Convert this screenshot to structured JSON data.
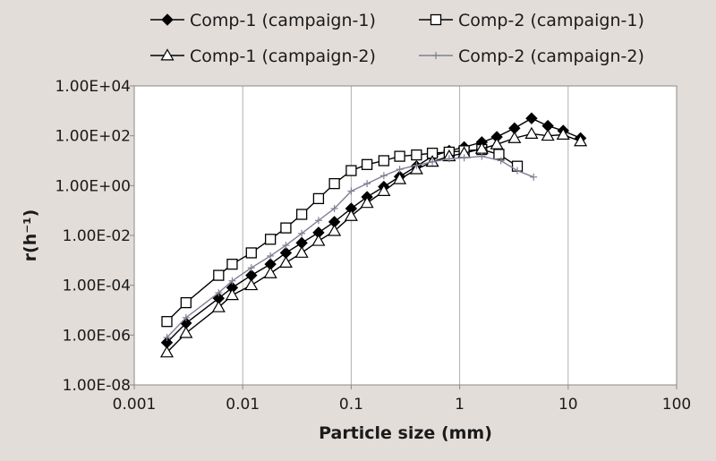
{
  "chart_data": {
    "type": "scatter",
    "title": "",
    "xlabel": "Particle size (mm)",
    "ylabel": "r(h⁻¹)",
    "x_scale": "log",
    "y_scale": "log",
    "xlim": [
      0.001,
      100
    ],
    "ylim": [
      1e-08,
      10000
    ],
    "x_ticks": [
      0.001,
      0.01,
      0.1,
      1,
      10,
      100
    ],
    "x_tick_labels": [
      "0.001",
      "0.01",
      "0.1",
      "1",
      "10",
      "100"
    ],
    "y_ticks": [
      1e-08,
      1e-06,
      0.0001,
      0.01,
      1,
      100,
      10000
    ],
    "y_tick_labels": [
      "1.00E-08",
      "1.00E-06",
      "1.00E-04",
      "1.00E-02",
      "1.00E+00",
      "1.00E+02",
      "1.00E+04"
    ],
    "grid": "vertical",
    "legend_position": "top",
    "series": [
      {
        "name": "Comp-1 (campaign-1)",
        "marker": "diamond-filled",
        "color": "#000000",
        "x": [
          0.002,
          0.003,
          0.006,
          0.008,
          0.012,
          0.018,
          0.025,
          0.035,
          0.05,
          0.07,
          0.1,
          0.14,
          0.2,
          0.28,
          0.4,
          0.56,
          0.8,
          1.1,
          1.6,
          2.2,
          3.2,
          4.6,
          6.5,
          9,
          13
        ],
        "y": [
          5e-07,
          3e-06,
          3e-05,
          8e-05,
          0.00025,
          0.0007,
          0.002,
          0.005,
          0.013,
          0.035,
          0.12,
          0.35,
          0.9,
          2.3,
          6,
          15,
          25,
          35,
          55,
          90,
          200,
          500,
          250,
          160,
          80
        ]
      },
      {
        "name": "Comp-2 (campaign-1)",
        "marker": "square-open",
        "color": "#000000",
        "x": [
          0.002,
          0.003,
          0.006,
          0.008,
          0.012,
          0.018,
          0.025,
          0.035,
          0.05,
          0.07,
          0.1,
          0.14,
          0.2,
          0.28,
          0.4,
          0.56,
          0.8,
          1.1,
          1.6,
          2.3,
          3.4
        ],
        "y": [
          3.5e-06,
          2e-05,
          0.00025,
          0.0007,
          0.002,
          0.007,
          0.02,
          0.07,
          0.3,
          1.2,
          4,
          7,
          10,
          15,
          17,
          20,
          22,
          25,
          28,
          18,
          6
        ]
      },
      {
        "name": "Comp-1 (campaign-2)",
        "marker": "triangle-open",
        "color": "#000000",
        "x": [
          0.002,
          0.003,
          0.006,
          0.008,
          0.012,
          0.018,
          0.025,
          0.035,
          0.05,
          0.07,
          0.1,
          0.14,
          0.2,
          0.28,
          0.4,
          0.56,
          0.8,
          1.1,
          1.6,
          2.2,
          3.2,
          4.6,
          6.5,
          9,
          13
        ],
        "y": [
          2e-07,
          1.2e-06,
          1.3e-05,
          4e-05,
          0.0001,
          0.0003,
          0.0008,
          0.002,
          0.006,
          0.015,
          0.06,
          0.2,
          0.6,
          1.8,
          4.5,
          9,
          15,
          20,
          30,
          45,
          80,
          120,
          100,
          110,
          60
        ]
      },
      {
        "name": "Comp-2 (campaign-2)",
        "marker": "plus",
        "color": "#7f7f96",
        "x": [
          0.002,
          0.003,
          0.006,
          0.008,
          0.012,
          0.018,
          0.025,
          0.035,
          0.05,
          0.07,
          0.1,
          0.14,
          0.2,
          0.28,
          0.4,
          0.56,
          0.8,
          1.1,
          1.6,
          2.4,
          3.4,
          4.8
        ],
        "y": [
          8e-07,
          5e-06,
          5e-05,
          0.00015,
          0.0005,
          0.0015,
          0.004,
          0.012,
          0.04,
          0.12,
          0.6,
          1.2,
          2.5,
          4.5,
          6.5,
          9,
          12,
          13,
          15,
          10,
          4,
          2.2
        ]
      }
    ]
  }
}
